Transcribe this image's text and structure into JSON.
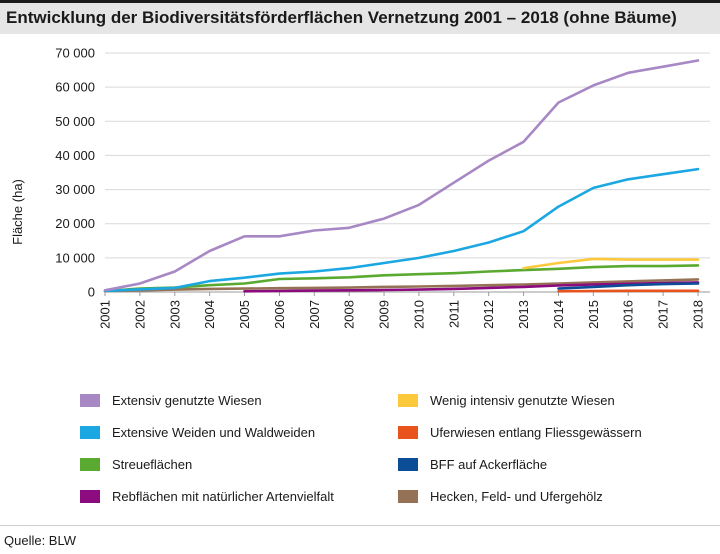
{
  "chart_data": {
    "type": "line",
    "title": "Entwicklung der Biodiversitätsförderflächen Vernetzung 2001 – 2018 (ohne Bäume)",
    "ylabel": "Fläche (ha)",
    "xlabel": "",
    "x": [
      "2001",
      "2002",
      "2003",
      "2004",
      "2005",
      "2006",
      "2007",
      "2008",
      "2009",
      "2010",
      "2011",
      "2012",
      "2013",
      "2014",
      "2015",
      "2016",
      "2017",
      "2018"
    ],
    "ylim": [
      0,
      70000
    ],
    "yticks": [
      0,
      10000,
      20000,
      30000,
      40000,
      50000,
      60000,
      70000
    ],
    "ytick_labels": [
      "0",
      "10 000",
      "20 000",
      "30 000",
      "40 000",
      "50 000",
      "60 000",
      "70 000"
    ],
    "grid": true,
    "legend_position": "bottom",
    "series": [
      {
        "name": "Extensiv genutzte Wiesen",
        "color": "#a888c4",
        "values": [
          500,
          2500,
          6000,
          12000,
          16300,
          16300,
          18000,
          18800,
          21500,
          25500,
          32000,
          38500,
          44000,
          55500,
          60500,
          64200,
          66000,
          67800
        ]
      },
      {
        "name": "Wenig intensiv genutzte Wiesen",
        "color": "#fcc93d",
        "values": [
          null,
          null,
          null,
          null,
          null,
          null,
          null,
          null,
          null,
          null,
          null,
          null,
          7000,
          8500,
          9700,
          9500,
          9500,
          9500
        ]
      },
      {
        "name": "Extensive Weiden und Waldweiden",
        "color": "#1ba7e1",
        "values": [
          300,
          800,
          1200,
          3200,
          4200,
          5400,
          6000,
          7000,
          8500,
          10000,
          12000,
          14500,
          17800,
          25000,
          30500,
          33000,
          34500,
          36000
        ]
      },
      {
        "name": "Uferwiesen entlang Fliessgewässern",
        "color": "#e8531e",
        "values": [
          null,
          null,
          null,
          null,
          null,
          null,
          null,
          null,
          null,
          null,
          null,
          null,
          null,
          200,
          300,
          350,
          350,
          350
        ]
      },
      {
        "name": "Streueflächen",
        "color": "#5aaa32",
        "values": [
          300,
          1000,
          1300,
          2000,
          2500,
          3800,
          4000,
          4300,
          4900,
          5200,
          5500,
          6000,
          6400,
          6800,
          7300,
          7600,
          7600,
          7800
        ]
      },
      {
        "name": "BFF auf Ackerfläche",
        "color": "#0b4d96",
        "values": [
          null,
          null,
          null,
          null,
          null,
          null,
          null,
          null,
          null,
          null,
          null,
          null,
          null,
          1000,
          1500,
          2000,
          2300,
          2500
        ]
      },
      {
        "name": "Rebflächen mit natürlicher Artenvielfalt",
        "color": "#8c0b7e",
        "values": [
          null,
          null,
          null,
          null,
          200,
          300,
          400,
          500,
          600,
          700,
          900,
          1200,
          1500,
          1900,
          2200,
          2400,
          2600,
          2800
        ]
      },
      {
        "name": "Hecken, Feld- und Ufergehölz",
        "color": "#957256",
        "values": [
          300,
          500,
          700,
          900,
          1000,
          1100,
          1200,
          1300,
          1500,
          1600,
          1800,
          2000,
          2200,
          2500,
          2800,
          3100,
          3400,
          3700
        ]
      }
    ]
  },
  "footer": {
    "source": "Quelle: BLW"
  }
}
